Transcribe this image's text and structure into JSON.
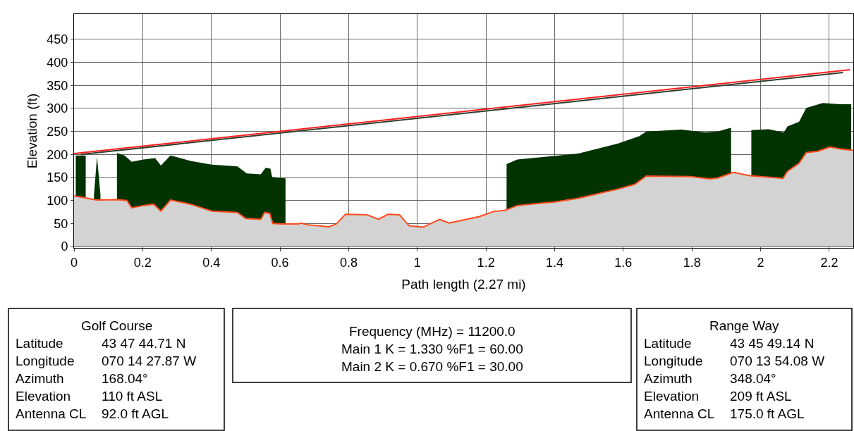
{
  "chart_data": {
    "type": "area",
    "xlabel": "Path length (2.27 mi)",
    "ylabel": "Elevation (ft)",
    "xlim": [
      0,
      2.27
    ],
    "xticks": [
      0,
      0.2,
      0.4,
      0.6,
      0.8,
      1.0,
      1.2,
      1.4,
      1.6,
      1.8,
      2.0,
      2.2
    ],
    "ylim": [
      -3,
      505
    ],
    "yticks": [
      0,
      50,
      100,
      150,
      200,
      250,
      300,
      350,
      400,
      450
    ],
    "grid": true,
    "series": [
      {
        "color": "#003300",
        "x": [
          0.005,
          0.034
        ],
        "values": [
          198,
          198
        ]
      },
      {
        "color": "#003300",
        "x": [
          0.058,
          0.067,
          0.077
        ],
        "values": [
          112,
          195,
          112
        ]
      },
      {
        "color": "#003300",
        "x": [
          0.125,
          0.147,
          0.168,
          0.202,
          0.236,
          0.253,
          0.281,
          0.339,
          0.401,
          0.476,
          0.503,
          0.544,
          0.558,
          0.572,
          0.577,
          0.616
        ],
        "values": [
          203,
          198,
          184,
          189,
          192,
          176,
          198,
          186,
          178,
          174,
          159,
          157,
          171,
          169,
          151,
          148
        ]
      },
      {
        "color": "#003300",
        "x": [
          1.26,
          1.291,
          1.428,
          1.469,
          1.585,
          1.647,
          1.667,
          1.77,
          1.838,
          1.875,
          1.913,
          1.914
        ],
        "values": [
          179,
          189,
          199,
          202,
          224,
          240,
          250,
          254,
          248,
          250,
          258,
          258
        ]
      },
      {
        "color": "#003300",
        "x": [
          1.973,
          2.023,
          2.068,
          2.078,
          2.112,
          2.133,
          2.181,
          2.232,
          2.264
        ],
        "values": [
          253,
          255,
          248,
          261,
          271,
          301,
          312,
          309,
          309
        ]
      },
      {
        "color": "#ff4a1a",
        "line_style": "solid",
        "x": [
          0,
          0.031,
          0.065,
          0.127,
          0.154,
          0.168,
          0.202,
          0.232,
          0.253,
          0.281,
          0.339,
          0.401,
          0.476,
          0.5,
          0.544,
          0.555,
          0.57,
          0.579,
          0.606,
          0.654,
          0.661,
          0.681,
          0.743,
          0.764,
          0.791,
          0.853,
          0.887,
          0.914,
          0.948,
          0.976,
          1.017,
          1.065,
          1.092,
          1.181,
          1.222,
          1.257,
          1.291,
          1.4,
          1.428,
          1.469,
          1.585,
          1.633,
          1.667,
          1.797,
          1.852,
          1.875,
          1.921,
          1.969,
          2.065,
          2.078,
          2.112,
          2.133,
          2.167,
          2.202,
          2.232,
          2.27
        ],
        "values": [
          110,
          106,
          101,
          102,
          100,
          84,
          89,
          92,
          77,
          101,
          92,
          77,
          74,
          61,
          59,
          74,
          72,
          50,
          49,
          49,
          51,
          47,
          43,
          49,
          70,
          69,
          59,
          70,
          69,
          45,
          42,
          59,
          51,
          65,
          76,
          79,
          89,
          97,
          100,
          105,
          125,
          135,
          153,
          152,
          147,
          149,
          161,
          154,
          148,
          163,
          181,
          204,
          207,
          216,
          212,
          209
        ]
      },
      {
        "type": "line",
        "color": "#2f3f2f",
        "x": [
          0.02,
          2.24
        ],
        "values": [
          200,
          378
        ]
      },
      {
        "type": "line",
        "color": "#ff2020",
        "x": [
          0,
          2.26
        ],
        "values": [
          202,
          384
        ]
      }
    ],
    "annotations": [
      "Golf Course\nLatitude\t43 47 44.71 N\nLongitude\t070 14 27.87 W\nAzimuth\t168.04°\nElevation\t110 ft ASL\nAntenna CL\t92.0 ft AGL",
      "Frequency (MHz) = 11200.0\nMain 1 K = 1.330 %F1 = 60.00\nMain 2 K = 0.670 %F1 = 30.00",
      "Range Way\nLatitude\t43 45 49.14 N\nLongitude\t070 13 54.08 W\nAzimuth\t348.04°\nElevation\t209 ft ASL\nAntenna CL\t175.0 ft AGL"
    ]
  }
}
